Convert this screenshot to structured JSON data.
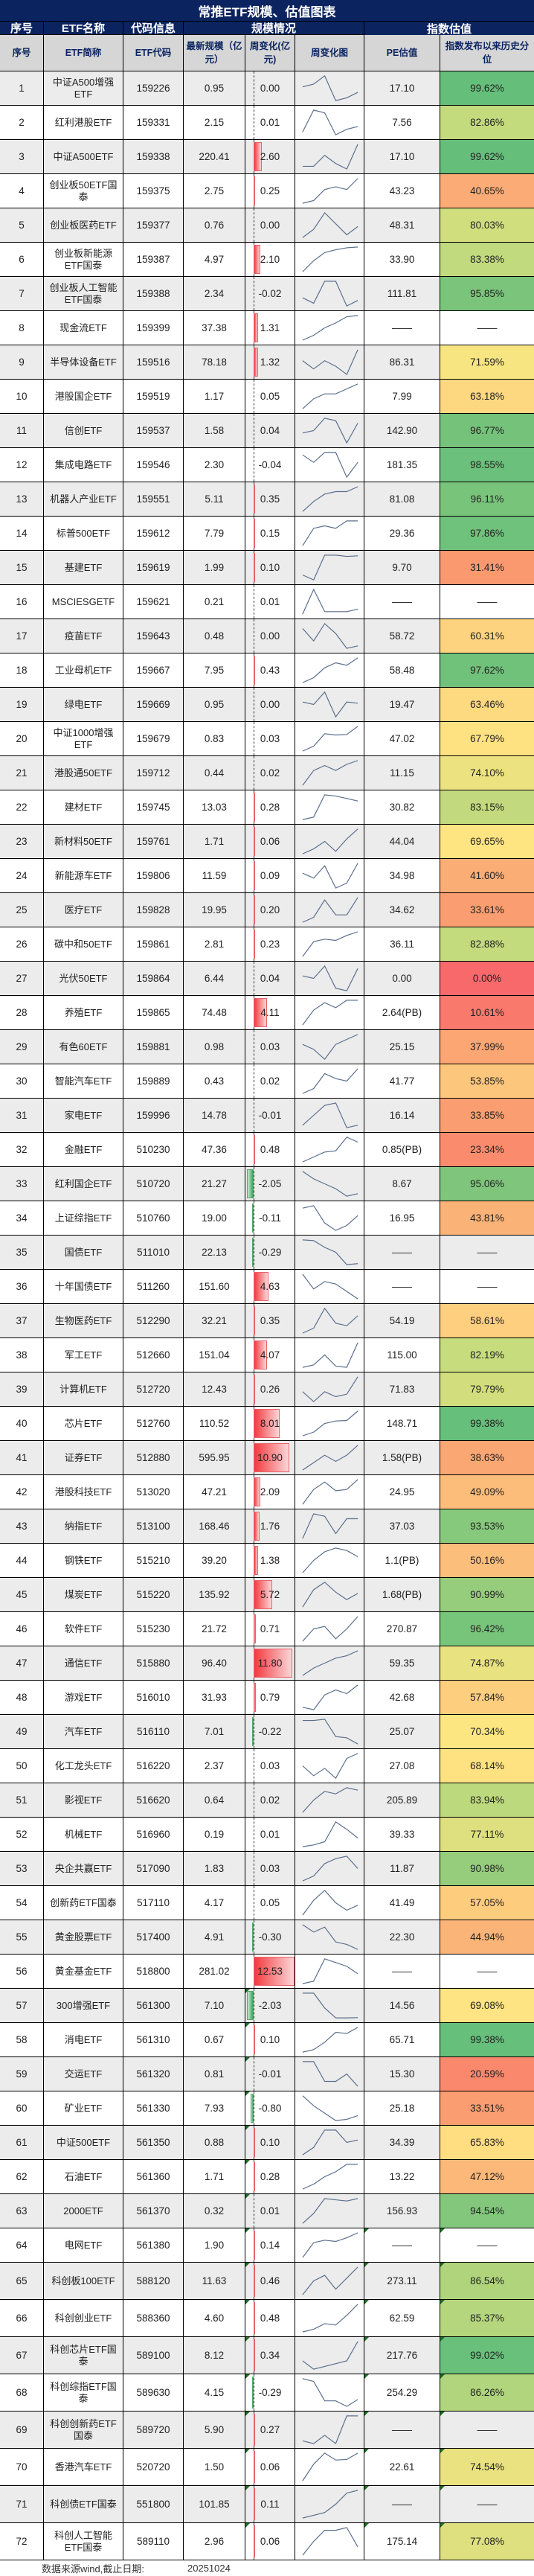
{
  "title": "常推ETF规模、估值图表",
  "group_headers": {
    "seq": "序号",
    "name": "ETF名称",
    "code": "代码信息",
    "scale": "规模情况",
    "valuation": "指数估值"
  },
  "sub_headers": {
    "seq": "序号",
    "name": "ETF简称",
    "code": "ETF代码",
    "aum": "最新规模（亿元）",
    "change": "周变化(亿元)",
    "chart": "周变化图",
    "pe": "PE估值",
    "pct": "指数发布以来历史分位"
  },
  "footer": {
    "source": "数据来源wind,截止日期:",
    "date": "20251024"
  },
  "colors": {
    "header_bg": "#0b2460",
    "subheader_bg": "#d6d6d6",
    "alt_row": "#ececec",
    "pos_bar": "#f23a3e",
    "neg_bar": "#3aa55d"
  },
  "rows": [
    {
      "seq": "1",
      "name": "中证A500增强ETF",
      "code": "159226",
      "aum": "0.95",
      "chg": "0.00",
      "pe": "17.10",
      "pct": "99.62%",
      "spark": [
        5,
        6,
        9,
        0,
        1,
        3
      ]
    },
    {
      "seq": "2",
      "name": "红利港股ETF",
      "code": "159331",
      "aum": "2.15",
      "chg": "0.01",
      "pe": "7.56",
      "pct": "82.86%",
      "spark": [
        1,
        9,
        8,
        0,
        2,
        3
      ]
    },
    {
      "seq": "3",
      "name": "中证A500ETF",
      "code": "159338",
      "aum": "220.41",
      "chg": "2.60",
      "pe": "17.10",
      "pct": "99.62%",
      "spark": [
        2,
        2,
        6,
        3,
        1,
        10
      ]
    },
    {
      "seq": "4",
      "name": "创业板50ETF国泰",
      "code": "159375",
      "aum": "2.75",
      "chg": "0.25",
      "pe": "43.23",
      "pct": "40.65%",
      "spark": [
        0,
        1,
        5,
        6,
        5,
        9
      ]
    },
    {
      "seq": "5",
      "name": "创业板医药ETF",
      "code": "159377",
      "aum": "0.76",
      "chg": "0.00",
      "pe": "48.31",
      "pct": "80.03%",
      "spark": [
        0,
        3,
        9,
        5,
        1,
        4
      ]
    },
    {
      "seq": "6",
      "name": "创业板新能源ETF国泰",
      "code": "159387",
      "aum": "4.97",
      "chg": "2.10",
      "pe": "33.90",
      "pct": "83.38%",
      "spark": [
        0,
        4,
        7,
        8,
        8.7,
        9
      ]
    },
    {
      "seq": "7",
      "name": "创业板人工智能ETF国泰",
      "code": "159388",
      "aum": "2.34",
      "chg": "-0.02",
      "pe": "111.81",
      "pct": "95.85%",
      "spark": [
        3,
        1,
        9,
        9,
        0,
        2
      ]
    },
    {
      "seq": "8",
      "name": "现金流ETF",
      "code": "159399",
      "aum": "37.38",
      "chg": "1.31",
      "pe": "——",
      "pct": "——",
      "spark": [
        0,
        2,
        5,
        7,
        9.5,
        10
      ]
    },
    {
      "seq": "9",
      "name": "半导体设备ETF",
      "code": "159516",
      "aum": "78.18",
      "chg": "1.32",
      "pe": "86.31",
      "pct": "71.59%",
      "spark": [
        6,
        3,
        6,
        4,
        1,
        10
      ]
    },
    {
      "seq": "10",
      "name": "港股国企ETF",
      "code": "159519",
      "aum": "1.17",
      "chg": "0.05",
      "pe": "7.99",
      "pct": "63.18%",
      "spark": [
        0,
        4,
        6,
        6,
        8,
        10
      ]
    },
    {
      "seq": "11",
      "name": "信创ETF",
      "code": "159537",
      "aum": "1.58",
      "chg": "0.04",
      "pe": "142.90",
      "pct": "96.77%",
      "spark": [
        4,
        5,
        10,
        9,
        0,
        8
      ]
    },
    {
      "seq": "12",
      "name": "集成电路ETF",
      "code": "159546",
      "aum": "2.30",
      "chg": "-0.04",
      "pe": "181.35",
      "pct": "98.55%",
      "spark": [
        9,
        6,
        10,
        10,
        0,
        6
      ]
    },
    {
      "seq": "13",
      "name": "机器人产业ETF",
      "code": "159551",
      "aum": "5.11",
      "chg": "0.35",
      "pe": "81.08",
      "pct": "96.11%",
      "spark": [
        0,
        4,
        7,
        8,
        8,
        10
      ]
    },
    {
      "seq": "14",
      "name": "标普500ETF",
      "code": "159612",
      "aum": "7.79",
      "chg": "0.15",
      "pe": "29.36",
      "pct": "97.86%",
      "spark": [
        0,
        7,
        8,
        7,
        10,
        10
      ]
    },
    {
      "seq": "15",
      "name": "基建ETF",
      "code": "159619",
      "aum": "1.99",
      "chg": "0.10",
      "pe": "9.70",
      "pct": "31.41%",
      "spark": [
        2,
        0,
        10,
        10,
        9.5,
        9.7
      ]
    },
    {
      "seq": "16",
      "name": "MSCIESGETF",
      "code": "159621",
      "aum": "0.21",
      "chg": "0.01",
      "pe": "——",
      "pct": "——",
      "spark": [
        0,
        10,
        1,
        1,
        1,
        2
      ]
    },
    {
      "seq": "17",
      "name": "疫苗ETF",
      "code": "159643",
      "aum": "0.48",
      "chg": "0.00",
      "pe": "58.72",
      "pct": "60.31%",
      "spark": [
        8,
        3,
        10,
        6,
        0,
        1
      ]
    },
    {
      "seq": "18",
      "name": "工业母机ETF",
      "code": "159667",
      "aum": "7.95",
      "chg": "0.43",
      "pe": "58.48",
      "pct": "97.62%",
      "spark": [
        0,
        2,
        6,
        8,
        7,
        10
      ]
    },
    {
      "seq": "19",
      "name": "绿电ETF",
      "code": "159669",
      "aum": "0.95",
      "chg": "0.00",
      "pe": "19.47",
      "pct": "63.46%",
      "spark": [
        6,
        5,
        10,
        0,
        6,
        5.5
      ]
    },
    {
      "seq": "20",
      "name": "中证1000增强ETF",
      "code": "159679",
      "aum": "0.83",
      "chg": "0.03",
      "pe": "47.02",
      "pct": "67.79%",
      "spark": [
        0,
        2,
        7,
        6.5,
        6.7,
        10
      ]
    },
    {
      "seq": "21",
      "name": "港股通50ETF",
      "code": "159712",
      "aum": "0.44",
      "chg": "0.02",
      "pe": "11.15",
      "pct": "74.10%",
      "spark": [
        0,
        6,
        8,
        6,
        8.5,
        10
      ]
    },
    {
      "seq": "22",
      "name": "建材ETF",
      "code": "159745",
      "aum": "13.03",
      "chg": "0.28",
      "pe": "30.82",
      "pct": "83.15%",
      "spark": [
        0,
        1,
        10,
        9.5,
        8.5,
        7.5
      ]
    },
    {
      "seq": "23",
      "name": "新材料50ETF",
      "code": "159761",
      "aum": "1.71",
      "chg": "0.06",
      "pe": "44.04",
      "pct": "69.65%",
      "spark": [
        0,
        2,
        5,
        1,
        6,
        10
      ]
    },
    {
      "seq": "24",
      "name": "新能源车ETF",
      "code": "159806",
      "aum": "11.59",
      "chg": "0.09",
      "pe": "34.98",
      "pct": "41.60%",
      "spark": [
        6,
        4,
        9,
        0,
        2,
        10
      ]
    },
    {
      "seq": "25",
      "name": "医疗ETF",
      "code": "159828",
      "aum": "19.95",
      "chg": "0.20",
      "pe": "34.62",
      "pct": "33.61%",
      "spark": [
        0,
        2,
        9,
        3,
        3,
        10
      ]
    },
    {
      "seq": "26",
      "name": "碳中和50ETF",
      "code": "159861",
      "aum": "2.81",
      "chg": "0.23",
      "pe": "36.11",
      "pct": "82.88%",
      "spark": [
        0,
        6,
        7,
        6.5,
        8.5,
        10
      ]
    },
    {
      "seq": "27",
      "name": "光伏50ETF",
      "code": "159864",
      "aum": "6.44",
      "chg": "0.04",
      "pe": "0.00",
      "pct": "0.00%",
      "spark": [
        6,
        5,
        10,
        1,
        0,
        9
      ]
    },
    {
      "seq": "28",
      "name": "养殖ETF",
      "code": "159865",
      "aum": "74.48",
      "chg": "4.11",
      "pe": "2.64(PB)",
      "pct": "10.61%",
      "spark": [
        0,
        6,
        9,
        7,
        10,
        10
      ]
    },
    {
      "seq": "29",
      "name": "有色60ETF",
      "code": "159881",
      "aum": "0.98",
      "chg": "0.03",
      "pe": "25.15",
      "pct": "37.99%",
      "spark": [
        6,
        4,
        0,
        6,
        8,
        10
      ]
    },
    {
      "seq": "30",
      "name": "智能汽车ETF",
      "code": "159889",
      "aum": "0.43",
      "chg": "0.02",
      "pe": "41.77",
      "pct": "53.85%",
      "spark": [
        0,
        2,
        8,
        6,
        5,
        10
      ]
    },
    {
      "seq": "31",
      "name": "家电ETF",
      "code": "159996",
      "aum": "14.78",
      "chg": "-0.01",
      "pe": "16.14",
      "pct": "33.85%",
      "spark": [
        1,
        5,
        9,
        10,
        0,
        1
      ]
    },
    {
      "seq": "32",
      "name": "金融ETF",
      "code": "510230",
      "aum": "47.36",
      "chg": "0.48",
      "pe": "0.85(PB)",
      "pct": "23.34%",
      "spark": [
        0,
        2,
        4,
        4.5,
        10,
        8
      ]
    },
    {
      "seq": "33",
      "name": "红利国企ETF",
      "code": "510720",
      "aum": "21.27",
      "chg": "-2.05",
      "pe": "8.67",
      "pct": "95.06%",
      "spark": [
        10,
        7,
        5,
        3,
        0,
        1
      ]
    },
    {
      "seq": "34",
      "name": "上证综指ETF",
      "code": "510760",
      "aum": "19.00",
      "chg": "-0.11",
      "pe": "16.95",
      "pct": "43.81%",
      "spark": [
        9,
        10,
        3,
        0,
        2,
        6
      ]
    },
    {
      "seq": "35",
      "name": "国债ETF",
      "code": "511010",
      "aum": "22.13",
      "chg": "-0.29",
      "pe": "——",
      "pct": "——",
      "spark": [
        10,
        9.7,
        7,
        5,
        0,
        0.4
      ]
    },
    {
      "seq": "36",
      "name": "十年国债ETF",
      "code": "511260",
      "aum": "151.60",
      "chg": "4.63",
      "pe": "——",
      "pct": "——",
      "spark": [
        10,
        4,
        7,
        6,
        3,
        0
      ]
    },
    {
      "seq": "37",
      "name": "生物医药ETF",
      "code": "512290",
      "aum": "32.21",
      "chg": "0.35",
      "pe": "54.19",
      "pct": "58.61%",
      "spark": [
        0,
        2,
        10,
        4,
        3,
        7
      ]
    },
    {
      "seq": "38",
      "name": "军工ETF",
      "code": "512660",
      "aum": "151.04",
      "chg": "4.07",
      "pe": "115.00",
      "pct": "82.19%",
      "spark": [
        0,
        1,
        5,
        0.5,
        0,
        10
      ]
    },
    {
      "seq": "39",
      "name": "计算机ETF",
      "code": "512720",
      "aum": "12.43",
      "chg": "0.26",
      "pe": "71.83",
      "pct": "79.79%",
      "spark": [
        4,
        0,
        4,
        2,
        3,
        10
      ]
    },
    {
      "seq": "40",
      "name": "芯片ETF",
      "code": "512760",
      "aum": "110.52",
      "chg": "8.01",
      "pe": "148.71",
      "pct": "99.38%",
      "spark": [
        0,
        1.5,
        5,
        6,
        6.2,
        10
      ]
    },
    {
      "seq": "41",
      "name": "证券ETF",
      "code": "512880",
      "aum": "595.95",
      "chg": "10.90",
      "pe": "1.58(PB)",
      "pct": "38.63%",
      "spark": [
        0,
        3,
        6,
        3.5,
        6,
        10
      ]
    },
    {
      "seq": "42",
      "name": "港股科技ETF",
      "code": "513020",
      "aum": "47.21",
      "chg": "2.09",
      "pe": "24.95",
      "pct": "49.09%",
      "spark": [
        0,
        6,
        9,
        5.5,
        6,
        10
      ]
    },
    {
      "seq": "43",
      "name": "纳指ETF",
      "code": "513100",
      "aum": "168.46",
      "chg": "1.76",
      "pe": "37.03",
      "pct": "93.53%",
      "spark": [
        0,
        10,
        9,
        2,
        8,
        8
      ]
    },
    {
      "seq": "44",
      "name": "钢铁ETF",
      "code": "515210",
      "aum": "39.20",
      "chg": "1.38",
      "pe": "1.1(PB)",
      "pct": "50.16%",
      "spark": [
        0,
        5,
        8.5,
        10,
        9,
        6.5
      ]
    },
    {
      "seq": "45",
      "name": "煤炭ETF",
      "code": "515220",
      "aum": "135.92",
      "chg": "5.72",
      "pe": "1.68(PB)",
      "pct": "90.99%",
      "spark": [
        0,
        7,
        10,
        6,
        3,
        5.5
      ]
    },
    {
      "seq": "46",
      "name": "软件ETF",
      "code": "515230",
      "aum": "21.72",
      "chg": "0.71",
      "pe": "270.87",
      "pct": "96.42%",
      "spark": [
        0,
        5,
        6,
        1,
        5,
        10
      ]
    },
    {
      "seq": "47",
      "name": "通信ETF",
      "code": "515880",
      "aum": "96.40",
      "chg": "11.80",
      "pe": "59.35",
      "pct": "74.87%",
      "spark": [
        0,
        3,
        5,
        7,
        8,
        10
      ]
    },
    {
      "seq": "48",
      "name": "游戏ETF",
      "code": "516010",
      "aum": "31.93",
      "chg": "0.79",
      "pe": "42.68",
      "pct": "57.84%",
      "spark": [
        1,
        0,
        6,
        8,
        6.5,
        10
      ]
    },
    {
      "seq": "49",
      "name": "汽车ETF",
      "code": "516110",
      "aum": "7.01",
      "chg": "-0.22",
      "pe": "25.07",
      "pct": "70.34%",
      "spark": [
        9.5,
        9.5,
        10,
        3,
        2.5,
        0
      ]
    },
    {
      "seq": "50",
      "name": "化工龙头ETF",
      "code": "516220",
      "aum": "2.37",
      "chg": "0.03",
      "pe": "27.08",
      "pct": "68.14%",
      "spark": [
        5,
        1,
        4,
        0,
        8,
        10
      ]
    },
    {
      "seq": "51",
      "name": "影视ETF",
      "code": "516620",
      "aum": "0.64",
      "chg": "0.02",
      "pe": "205.89",
      "pct": "83.94%",
      "spark": [
        0,
        5,
        8.5,
        7.5,
        10,
        9
      ]
    },
    {
      "seq": "52",
      "name": "机械ETF",
      "code": "516960",
      "aum": "0.19",
      "chg": "0.01",
      "pe": "39.33",
      "pct": "77.11%",
      "spark": [
        0,
        0.7,
        2,
        10,
        7,
        3.5
      ]
    },
    {
      "seq": "53",
      "name": "央企共赢ETF",
      "code": "517090",
      "aum": "1.83",
      "chg": "0.03",
      "pe": "11.87",
      "pct": "90.98%",
      "spark": [
        0,
        2,
        7,
        9,
        10,
        5
      ]
    },
    {
      "seq": "54",
      "name": "创新药ETF国泰",
      "code": "517110",
      "aum": "4.17",
      "chg": "0.05",
      "pe": "41.49",
      "pct": "57.05%",
      "spark": [
        0,
        6,
        10,
        5,
        2,
        4
      ]
    },
    {
      "seq": "55",
      "name": "黄金股票ETF",
      "code": "517400",
      "aum": "4.91",
      "chg": "-0.30",
      "pe": "22.30",
      "pct": "44.94%",
      "spark": [
        10,
        7,
        9,
        3,
        2,
        0
      ]
    },
    {
      "seq": "56",
      "name": "黄金基金ETF",
      "code": "518800",
      "aum": "281.02",
      "chg": "12.53",
      "pe": "——",
      "pct": "——",
      "spark": [
        0,
        1,
        10,
        8.5,
        7,
        4
      ]
    },
    {
      "seq": "57",
      "name": "300增强ETF",
      "code": "561300",
      "aum": "7.10",
      "chg": "-2.03",
      "pe": "14.56",
      "pct": "69.08%",
      "spark": [
        10,
        10,
        4,
        0,
        0,
        0.1
      ]
    },
    {
      "seq": "58",
      "name": "消电ETF",
      "code": "561310",
      "aum": "0.67",
      "chg": "0.10",
      "pe": "65.71",
      "pct": "99.38%",
      "spark": [
        0,
        1,
        4,
        8,
        7.5,
        10
      ]
    },
    {
      "seq": "59",
      "name": "交运ETF",
      "code": "561320",
      "aum": "0.81",
      "chg": "-0.01",
      "pe": "15.30",
      "pct": "20.59%",
      "spark": [
        10,
        10,
        2,
        2,
        5,
        0
      ]
    },
    {
      "seq": "60",
      "name": "矿业ETF",
      "code": "561330",
      "aum": "7.93",
      "chg": "-0.80",
      "pe": "25.18",
      "pct": "33.51%",
      "spark": [
        10,
        6,
        3,
        0,
        0.5,
        2
      ]
    },
    {
      "seq": "61",
      "name": "中证500ETF",
      "code": "561350",
      "aum": "0.88",
      "chg": "0.10",
      "pe": "34.39",
      "pct": "65.83%",
      "spark": [
        0,
        3,
        10,
        10,
        5,
        6
      ]
    },
    {
      "seq": "62",
      "name": "石油ETF",
      "code": "561360",
      "aum": "1.71",
      "chg": "0.28",
      "pe": "13.22",
      "pct": "47.12%",
      "spark": [
        0,
        2,
        5,
        7,
        10,
        10
      ]
    },
    {
      "seq": "63",
      "name": "2000ETF",
      "code": "561370",
      "aum": "0.32",
      "chg": "0.01",
      "pe": "156.93",
      "pct": "94.54%",
      "spark": [
        0,
        4,
        10,
        9.5,
        9,
        10
      ]
    },
    {
      "seq": "64",
      "name": "电网ETF",
      "code": "561380",
      "aum": "1.90",
      "chg": "0.14",
      "pe": "——",
      "pct": "——",
      "spark": [
        0,
        6,
        7,
        6.5,
        8,
        10
      ]
    },
    {
      "seq": "65",
      "name": "科创板100ETF",
      "code": "588120",
      "aum": "11.63",
      "chg": "0.46",
      "pe": "273.11",
      "pct": "86.54%",
      "spark": [
        0,
        5,
        7,
        2,
        6,
        10
      ]
    },
    {
      "seq": "66",
      "name": "科创创业ETF",
      "code": "588360",
      "aum": "4.60",
      "chg": "0.48",
      "pe": "62.59",
      "pct": "85.37%",
      "spark": [
        0,
        1,
        3,
        2.5,
        6,
        10
      ]
    },
    {
      "seq": "67",
      "name": "科创芯片ETF国泰",
      "code": "589100",
      "aum": "8.12",
      "chg": "0.34",
      "pe": "217.76",
      "pct": "99.02%",
      "spark": [
        3,
        0,
        1,
        2,
        3,
        10
      ]
    },
    {
      "seq": "68",
      "name": "科创综指ETF国泰",
      "code": "589630",
      "aum": "4.15",
      "chg": "-0.29",
      "pe": "254.29",
      "pct": "86.26%",
      "spark": [
        10,
        9,
        2,
        2,
        0,
        2.5
      ]
    },
    {
      "seq": "69",
      "name": "科创创新药ETF国泰",
      "code": "589720",
      "aum": "5.90",
      "chg": "0.27",
      "pe": "——",
      "pct": "——",
      "spark": [
        1,
        0,
        3,
        0,
        10,
        10
      ]
    },
    {
      "seq": "70",
      "name": "香港汽车ETF",
      "code": "520720",
      "aum": "1.50",
      "chg": "0.06",
      "pe": "22.61",
      "pct": "74.54%",
      "spark": [
        0,
        6,
        10,
        7.5,
        7.7,
        10
      ]
    },
    {
      "seq": "71",
      "name": "科创债ETF国泰",
      "code": "551800",
      "aum": "101.85",
      "chg": "0.11",
      "pe": "——",
      "pct": "——",
      "spark": [
        0,
        1,
        2,
        5,
        9,
        10
      ]
    },
    {
      "seq": "72",
      "name": "科创人工智能ETF国泰",
      "code": "589110",
      "aum": "2.96",
      "chg": "0.06",
      "pe": "175.14",
      "pct": "77.08%",
      "spark": [
        0,
        5,
        9,
        9,
        10,
        3
      ]
    }
  ]
}
